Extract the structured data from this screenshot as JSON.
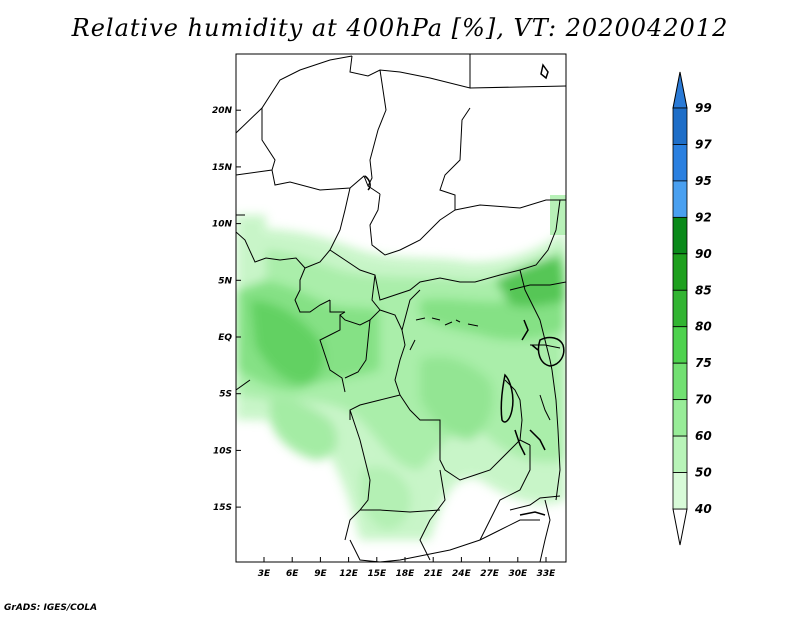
{
  "title": "Relative humidity at 400hPa [%], VT: 2020042012",
  "credit": "GrADS: IGES/COLA",
  "map": {
    "lat_ticks": [
      {
        "value": 20,
        "label": "20N"
      },
      {
        "value": 15,
        "label": "15N"
      },
      {
        "value": 10,
        "label": "10N"
      },
      {
        "value": 5,
        "label": "5N"
      },
      {
        "value": 0,
        "label": "EQ"
      },
      {
        "value": -5,
        "label": "5S"
      },
      {
        "value": -10,
        "label": "10S"
      },
      {
        "value": -15,
        "label": "15S"
      }
    ],
    "lon_ticks": [
      {
        "value": 3,
        "label": "3E"
      },
      {
        "value": 6,
        "label": "6E"
      },
      {
        "value": 9,
        "label": "9E"
      },
      {
        "value": 12,
        "label": "12E"
      },
      {
        "value": 15,
        "label": "15E"
      },
      {
        "value": 18,
        "label": "18E"
      },
      {
        "value": 21,
        "label": "21E"
      },
      {
        "value": 24,
        "label": "24E"
      },
      {
        "value": 27,
        "label": "27E"
      },
      {
        "value": 30,
        "label": "30E"
      },
      {
        "value": 33,
        "label": "33E"
      }
    ]
  },
  "colorbar": {
    "levels": [
      {
        "label": "99",
        "color": "#1e6ec8"
      },
      {
        "label": "97",
        "color": "#2a80e0"
      },
      {
        "label": "95",
        "color": "#4aa0f0"
      },
      {
        "label": "92",
        "color": "#0a8a1a"
      },
      {
        "label": "90",
        "color": "#1ea01e"
      },
      {
        "label": "85",
        "color": "#32b432"
      },
      {
        "label": "80",
        "color": "#4ed24e"
      },
      {
        "label": "75",
        "color": "#72e072"
      },
      {
        "label": "70",
        "color": "#98ec98"
      },
      {
        "label": "60",
        "color": "#b8f4b8"
      },
      {
        "label": "50",
        "color": "#d8fad8"
      },
      {
        "label": "40",
        "color": "#f0fff0"
      }
    ],
    "top_color": "#2a7ad6",
    "bottom_color": "#ffffff"
  }
}
